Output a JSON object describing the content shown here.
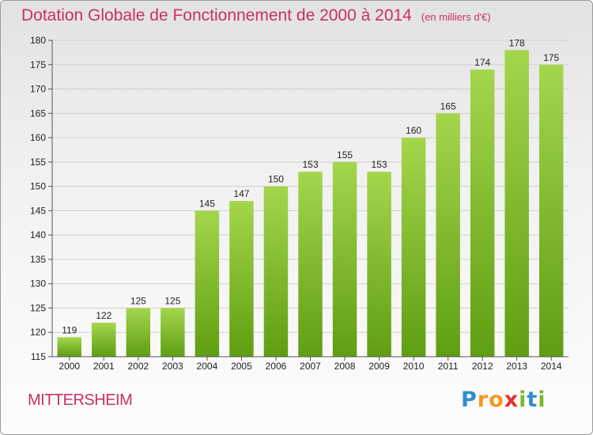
{
  "header": {
    "title": "Dotation Globale de Fonctionnement de 2000 à 2014",
    "unit": "(en milliers d'€)"
  },
  "footer": {
    "city": "MITTERSHEIM",
    "logo_letters": [
      "P",
      "r",
      "o",
      "x",
      "i",
      "t",
      "i"
    ],
    "logo_colors": [
      "#2e8fd0",
      "#f29a1e",
      "#f29a1e",
      "#e2322e",
      "#7ab82e",
      "#2e8fd0",
      "#7ab82e"
    ]
  },
  "chart_data": {
    "type": "bar",
    "title": "Dotation Globale de Fonctionnement de 2000 à 2014",
    "subtitle": "(en milliers d'€)",
    "categories": [
      "2000",
      "2001",
      "2002",
      "2003",
      "2004",
      "2005",
      "2006",
      "2007",
      "2008",
      "2009",
      "2010",
      "2011",
      "2012",
      "2013",
      "2014"
    ],
    "values": [
      119,
      122,
      125,
      125,
      145,
      147,
      150,
      153,
      155,
      153,
      160,
      165,
      174,
      178,
      175
    ],
    "ylim": [
      115,
      180
    ],
    "yticks": [
      115,
      120,
      125,
      130,
      135,
      140,
      145,
      150,
      155,
      160,
      165,
      170,
      175,
      180
    ],
    "grid": true,
    "colors": {
      "bar_top": "#a4d64c",
      "bar_bottom": "#5f9e12",
      "grid": "#d0d0d0",
      "axis": "#555555"
    }
  }
}
